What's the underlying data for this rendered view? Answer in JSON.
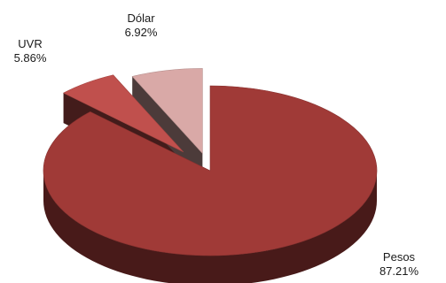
{
  "chart_data": {
    "type": "pie",
    "title": "",
    "style": "3d-exploded",
    "slices": [
      {
        "label": "Pesos",
        "value": 87.21,
        "value_label": "87.21%",
        "color": "#a03a37"
      },
      {
        "label": "UVR",
        "value": 5.86,
        "value_label": "5.86%",
        "color": "#c0504d"
      },
      {
        "label": "Dólar",
        "value": 6.92,
        "value_label": "6.92%",
        "color": "#d9a9a7"
      }
    ]
  }
}
